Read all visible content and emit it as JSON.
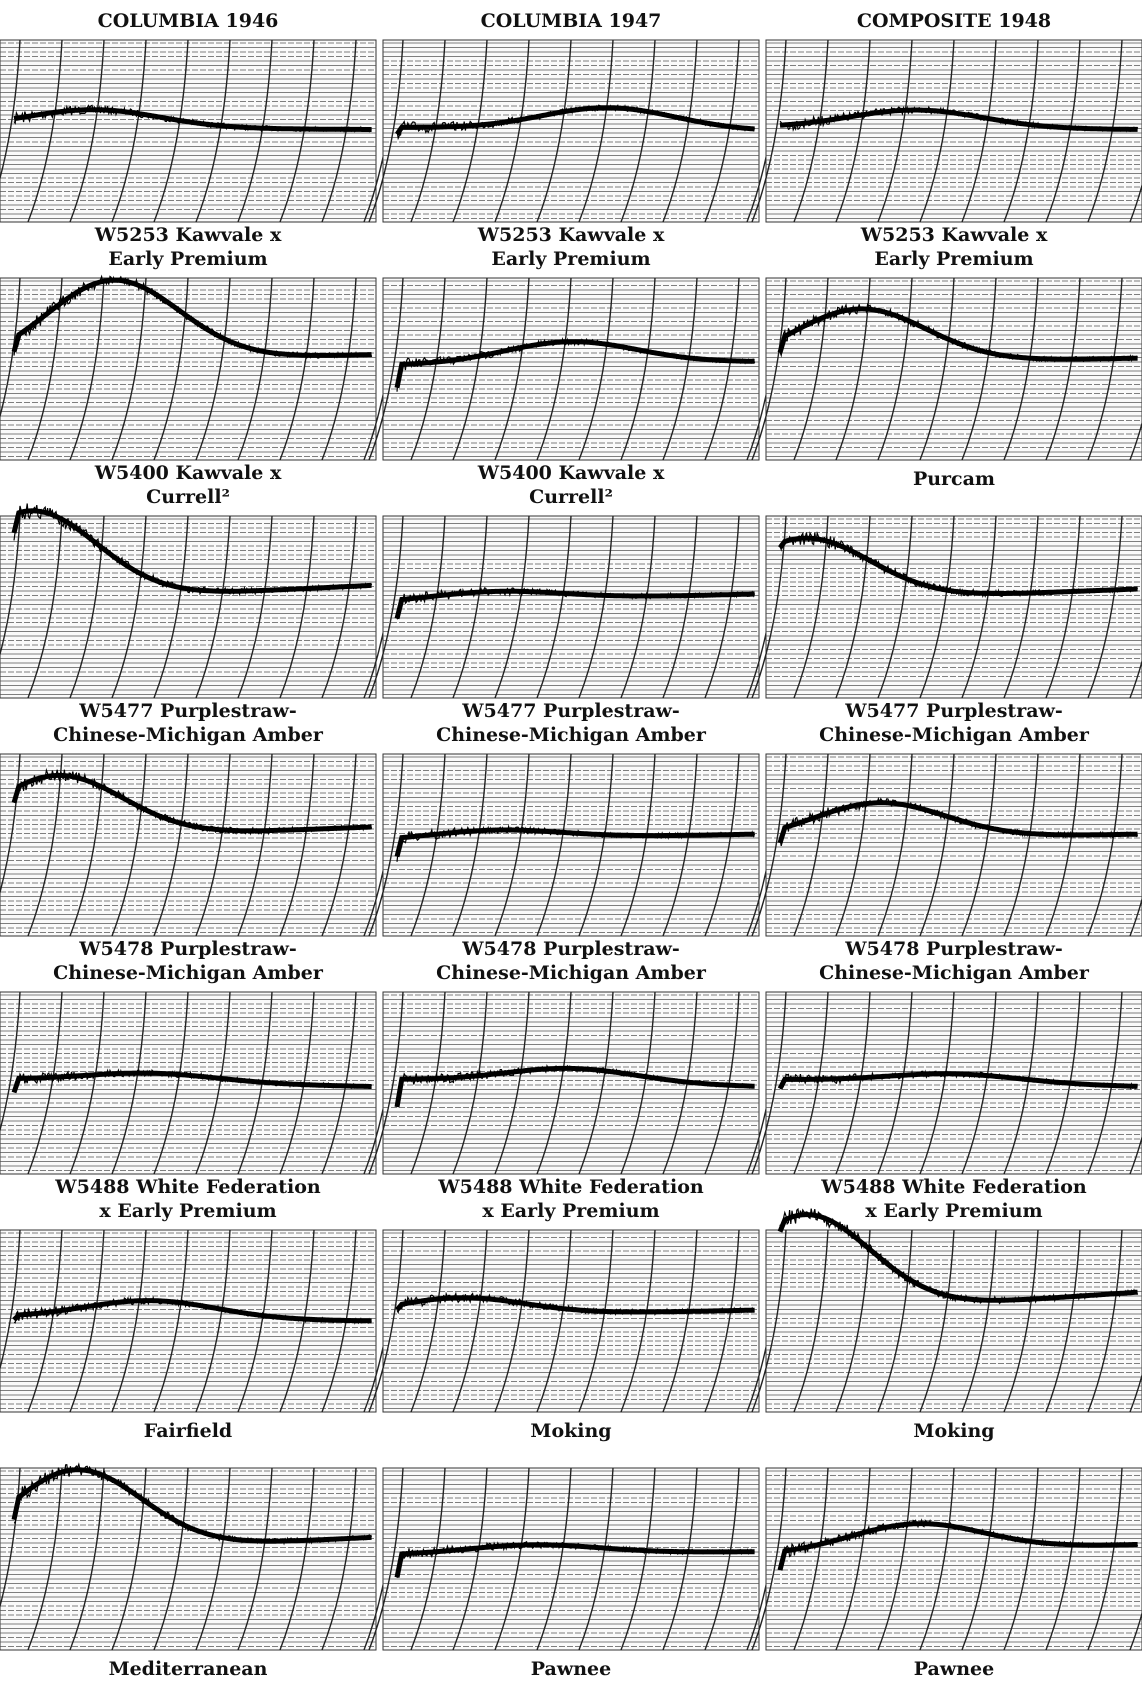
{
  "header": {
    "columns": [
      "COLUMBIA 1946",
      "COLUMBIA 1947",
      "COMPOSITE 1948"
    ]
  },
  "rows": [
    {
      "labels": [
        [
          "W5253 Kawvale x",
          "Early Premium"
        ],
        [
          "W5253 Kawvale x",
          "Early Premium"
        ],
        [
          "W5253 Kawvale x",
          "Early Premium"
        ]
      ]
    },
    {
      "labels": [
        [
          "W5400 Kawvale x",
          "Currell²"
        ],
        [
          "W5400 Kawvale x",
          "Currell²"
        ],
        [
          "Purcam"
        ]
      ]
    },
    {
      "labels": [
        [
          "W5477 Purplestraw-",
          "Chinese-Michigan Amber"
        ],
        [
          "W5477 Purplestraw-",
          "Chinese-Michigan Amber"
        ],
        [
          "W5477 Purplestraw-",
          "Chinese-Michigan Amber"
        ]
      ]
    },
    {
      "labels": [
        [
          "W5478 Purplestraw-",
          "Chinese-Michigan Amber"
        ],
        [
          "W5478 Purplestraw-",
          "Chinese-Michigan Amber"
        ],
        [
          "W5478 Purplestraw-",
          "Chinese-Michigan Amber"
        ]
      ]
    },
    {
      "labels": [
        [
          "W5488 White Federation",
          "x Early Premium"
        ],
        [
          "W5488 White Federation",
          "x Early Premium"
        ],
        [
          "W5488 White Federation",
          "x Early Premium"
        ]
      ]
    },
    {
      "labels": [
        [
          "Fairfield"
        ],
        [
          "Moking"
        ],
        [
          "Moking"
        ]
      ]
    },
    {
      "labels": [
        [
          "Mediterranean"
        ],
        [
          "Pawnee"
        ],
        [
          "Pawnee"
        ]
      ]
    }
  ]
}
